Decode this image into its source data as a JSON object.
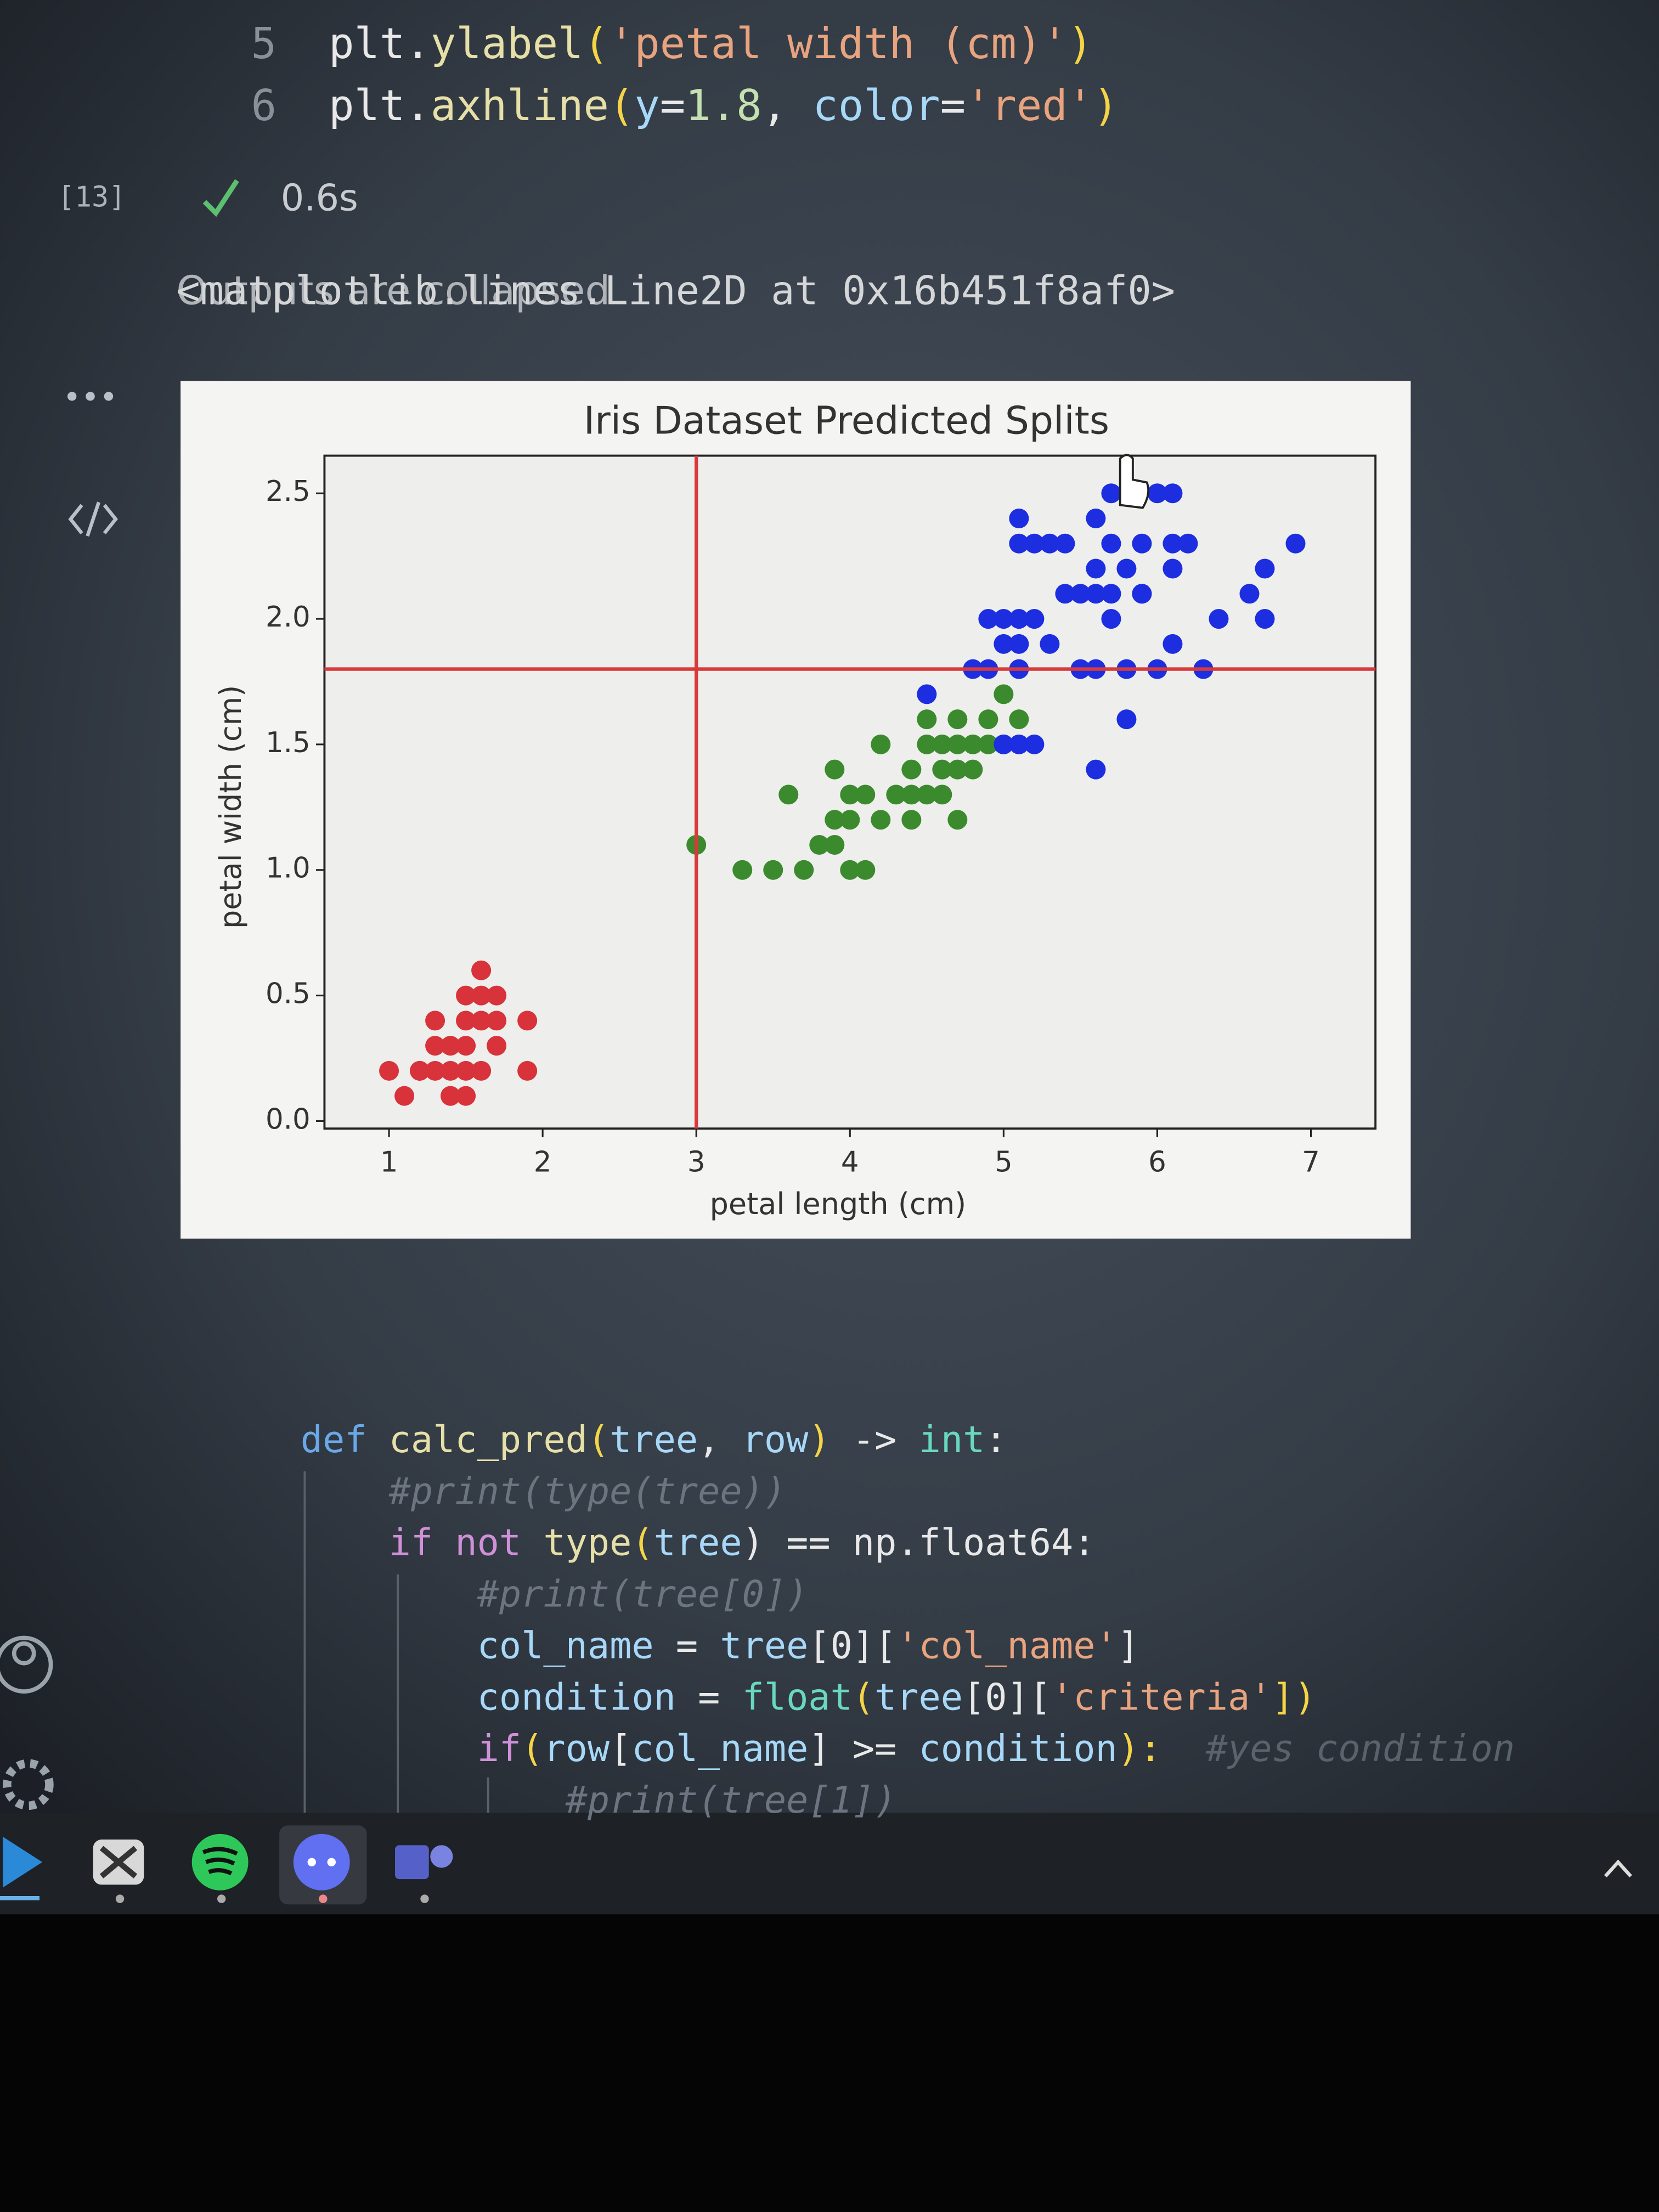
{
  "code_top": {
    "lines": [
      {
        "number": "5",
        "tokens": [
          {
            "text": "plt.",
            "color": "#e8e8e8"
          },
          {
            "text": "ylabel",
            "color": "#e6e0a8"
          },
          {
            "text": "(",
            "color": "#f5d547"
          },
          {
            "text": "'petal width (cm)'",
            "color": "#e8a37f"
          },
          {
            "text": ")",
            "color": "#f5d547"
          }
        ]
      },
      {
        "number": "6",
        "tokens": [
          {
            "text": "plt.",
            "color": "#e8e8e8"
          },
          {
            "text": "axhline",
            "color": "#e6e0a8"
          },
          {
            "text": "(",
            "color": "#f5d547"
          },
          {
            "text": "y",
            "color": "#a8d8f8"
          },
          {
            "text": "=",
            "color": "#e8e8e8"
          },
          {
            "text": "1.8",
            "color": "#c5e0b0"
          },
          {
            "text": ", ",
            "color": "#e8e8e8"
          },
          {
            "text": "color",
            "color": "#a8d8f8"
          },
          {
            "text": "=",
            "color": "#e8e8e8"
          },
          {
            "text": "'red'",
            "color": "#e8a37f"
          },
          {
            "text": ")",
            "color": "#f5d547"
          }
        ]
      }
    ]
  },
  "cell": {
    "execution_count": "[13]",
    "duration": "0.6s"
  },
  "output": {
    "collapsed_note": "Outputs are collapsed",
    "repr": "<matplotlib.lines.Line2D at 0x16b451f8af0>"
  },
  "chart_data": {
    "type": "scatter",
    "title": "Iris Dataset Predicted Splits",
    "x_label": "petal length (cm)",
    "y_label": "petal width (cm)",
    "xlim": [
      0.58,
      7.42
    ],
    "ylim": [
      -0.03,
      2.65
    ],
    "xticks": [
      1,
      2,
      3,
      4,
      5,
      6,
      7
    ],
    "yticks": [
      {
        "value": 0,
        "label": "0.0"
      },
      0.5,
      {
        "value": 1,
        "label": "1.0"
      },
      1.5,
      {
        "value": 2,
        "label": "2.0"
      },
      2.5
    ],
    "axhline": 1.8,
    "axvline": 3,
    "line_color": "#d83a3a",
    "series": [
      {
        "color": "#d8323a",
        "x": [
          1.4,
          1.3,
          1.5,
          1.7,
          1.4,
          1.5,
          1.4,
          1.1,
          1.2,
          1.5,
          1.3,
          1.7,
          1.5,
          1.0,
          1.9,
          1.6,
          1.6,
          1.6,
          1.9,
          1.2,
          1.3,
          1.4,
          1.6,
          1.5,
          1.7
        ],
        "values": [
          0.2,
          0.2,
          0.2,
          0.4,
          0.3,
          0.1,
          0.1,
          0.1,
          0.2,
          0.4,
          0.4,
          0.3,
          0.3,
          0.2,
          0.4,
          0.2,
          0.4,
          0.6,
          0.2,
          0.2,
          0.3,
          0.1,
          0.5,
          0.5,
          0.5
        ]
      },
      {
        "color": "#3c8a2e",
        "x": [
          4.7,
          4.5,
          4.0,
          4.6,
          4.5,
          4.7,
          3.3,
          4.6,
          3.9,
          3.5,
          4.2,
          4.0,
          3.6,
          4.4,
          4.1,
          3.9,
          4.0,
          4.7,
          4.3,
          4.4,
          4.8,
          5.0,
          3.8,
          3.7,
          3.9,
          5.1,
          4.7,
          4.4,
          4.1,
          4.6,
          4.2,
          3.0,
          4.9,
          4.8,
          4.9,
          4.5
        ],
        "values": [
          1.4,
          1.5,
          1.3,
          1.5,
          1.3,
          1.6,
          1.0,
          1.3,
          1.4,
          1.0,
          1.5,
          1.0,
          1.3,
          1.4,
          1.0,
          1.1,
          1.2,
          1.2,
          1.3,
          1.2,
          1.4,
          1.7,
          1.1,
          1.0,
          1.2,
          1.6,
          1.5,
          1.3,
          1.3,
          1.4,
          1.2,
          1.1,
          1.5,
          1.5,
          1.6,
          1.6
        ]
      },
      {
        "color": "#1c2ee0",
        "x": [
          6.0,
          5.1,
          5.9,
          5.6,
          5.8,
          6.6,
          4.5,
          6.3,
          5.8,
          6.1,
          5.1,
          5.3,
          5.5,
          5.0,
          5.1,
          5.3,
          5.5,
          6.7,
          6.9,
          5.0,
          5.7,
          4.9,
          6.7,
          4.9,
          5.7,
          6.0,
          4.8,
          5.6,
          5.8,
          6.1,
          6.4,
          5.6,
          5.1,
          5.6,
          6.1,
          5.6,
          5.4,
          5.1,
          5.9,
          5.7,
          5.2,
          5.0,
          5.2,
          5.4,
          5.1,
          5.2,
          5.0,
          5.9,
          6.1,
          6.2,
          5.7
        ],
        "values": [
          2.5,
          1.9,
          2.1,
          1.8,
          2.2,
          2.1,
          1.7,
          1.8,
          1.8,
          2.5,
          2.0,
          1.9,
          2.1,
          2.0,
          2.4,
          2.3,
          1.8,
          2.2,
          2.3,
          1.5,
          2.3,
          2.0,
          2.0,
          1.8,
          2.1,
          1.8,
          1.8,
          2.1,
          1.6,
          1.9,
          2.0,
          2.2,
          1.5,
          1.4,
          2.3,
          2.4,
          2.1,
          2.3,
          2.3,
          2.5,
          2.3,
          1.9,
          2.0,
          2.3,
          1.8,
          1.5,
          1.5,
          2.1,
          2.2,
          2.3,
          2.0
        ]
      }
    ]
  },
  "code_bottom": {
    "lines": [
      {
        "tokens": [
          {
            "text": "def ",
            "color": "#6aa8e8"
          },
          {
            "text": "calc_pred",
            "color": "#e6e0a8"
          },
          {
            "text": "(",
            "color": "#f5d547"
          },
          {
            "text": "tree",
            "color": "#a8d8f8"
          },
          {
            "text": ", ",
            "color": "#e8e8e8"
          },
          {
            "text": "row",
            "color": "#a8d8f8"
          },
          {
            "text": ") ",
            "color": "#f5d547"
          },
          {
            "text": "-> ",
            "color": "#e8e8e8"
          },
          {
            "text": "int",
            "color": "#6ad8c0"
          },
          {
            "text": ":",
            "color": "#e8e8e8"
          }
        ]
      },
      {
        "tokens": [
          {
            "text": "    #print(type(tree))",
            "color": "#6c7480"
          }
        ]
      },
      {
        "tokens": [
          {
            "text": "    if not ",
            "color": "#d090d8"
          },
          {
            "text": "type",
            "color": "#e6e0a8"
          },
          {
            "text": "(",
            "color": "#f5d547"
          },
          {
            "text": "tree",
            "color": "#a8d8f8"
          },
          {
            "text": ") == np.float64:",
            "color": "#e8e8e8"
          }
        ]
      },
      {
        "tokens": [
          {
            "text": "        #print(tree[0])",
            "color": "#6c7480"
          }
        ]
      },
      {
        "tokens": [
          {
            "text": "        col_name",
            "color": "#a8d8f8"
          },
          {
            "text": " = ",
            "color": "#e8e8e8"
          },
          {
            "text": "tree",
            "color": "#a8d8f8"
          },
          {
            "text": "[0][",
            "color": "#e8e8e8"
          },
          {
            "text": "'col_name'",
            "color": "#e8a37f"
          },
          {
            "text": "]",
            "color": "#e8e8e8"
          }
        ]
      },
      {
        "tokens": [
          {
            "text": "        condition",
            "color": "#a8d8f8"
          },
          {
            "text": " = ",
            "color": "#e8e8e8"
          },
          {
            "text": "float",
            "color": "#6ad8c0"
          },
          {
            "text": "(",
            "color": "#f5d547"
          },
          {
            "text": "tree",
            "color": "#a8d8f8"
          },
          {
            "text": "[0][",
            "color": "#e8e8e8"
          },
          {
            "text": "'criteria'",
            "color": "#e8a37f"
          },
          {
            "text": "])",
            "color": "#f5d547"
          }
        ]
      },
      {
        "tokens": [
          {
            "text": "        if",
            "color": "#d090d8"
          },
          {
            "text": "(",
            "color": "#f5d547"
          },
          {
            "text": "row",
            "color": "#a8d8f8"
          },
          {
            "text": "[",
            "color": "#e8e8e8"
          },
          {
            "text": "col_name",
            "color": "#a8d8f8"
          },
          {
            "text": "] >= ",
            "color": "#e8e8e8"
          },
          {
            "text": "condition",
            "color": "#a8d8f8"
          },
          {
            "text": "):",
            "color": "#f5d547"
          },
          {
            "text": "  #yes condition",
            "color": "#5a626c"
          }
        ]
      },
      {
        "tokens": [
          {
            "text": "            #print(tree[1])",
            "color": "#6c7480"
          }
        ]
      }
    ]
  }
}
